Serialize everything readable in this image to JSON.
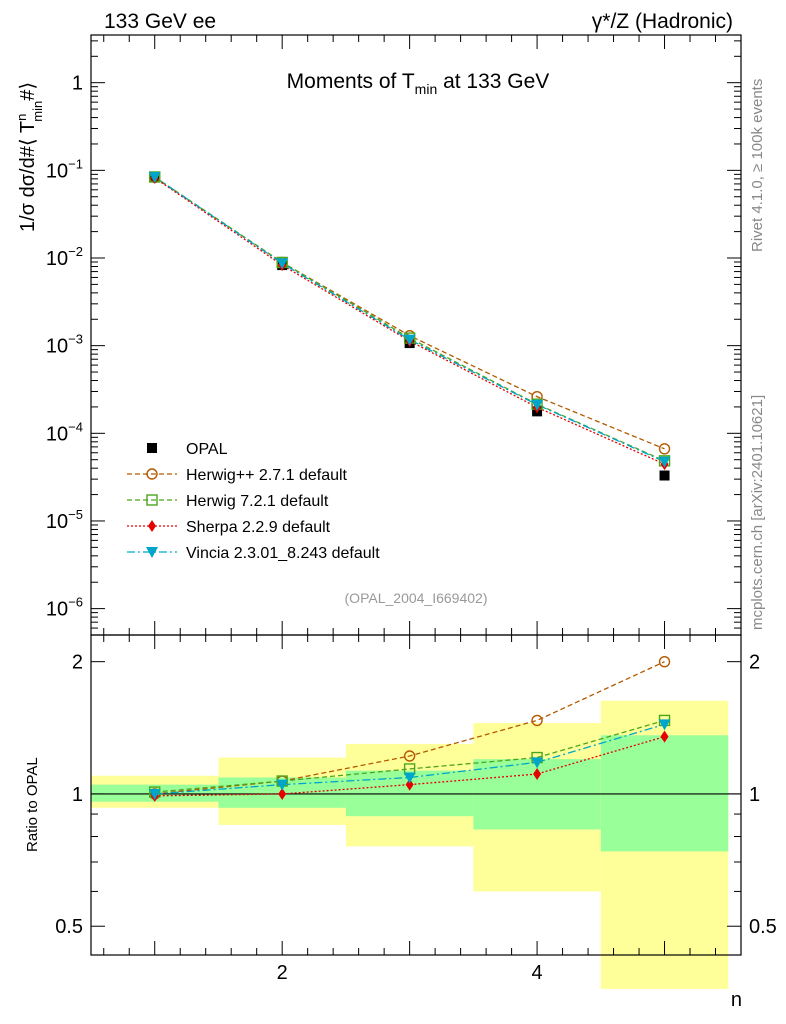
{
  "header": {
    "left": "133 GeV ee",
    "right": "γ*/Z (Hadronic)"
  },
  "side_labels": {
    "rivet": "Rivet 4.1.0, ≥ 100k events",
    "mcplots": "mcplots.cern.ch [arXiv:2401.10621]"
  },
  "chart_data": [
    {
      "type": "line",
      "title_parts": {
        "prefix": "Moments of T",
        "sub": "min",
        "suffix": " at 133 GeV"
      },
      "ylabel": "1/σ  dσ/d#⟨ T",
      "ylabel_sup": "n",
      "ylabel_sub": "min",
      "ylabel_end": "#⟩",
      "yscale": "log",
      "ylim": [
        5e-07,
        3.5
      ],
      "xlim": [
        0.5,
        5.6
      ],
      "yticks": [
        {
          "v": 1,
          "label": "1"
        },
        {
          "v": 0.1,
          "label": "10",
          "exp": "−1"
        },
        {
          "v": 0.01,
          "label": "10",
          "exp": "−2"
        },
        {
          "v": 0.001,
          "label": "10",
          "exp": "−3"
        },
        {
          "v": 0.0001,
          "label": "10",
          "exp": "−4"
        },
        {
          "v": 1e-05,
          "label": "10",
          "exp": "−5"
        },
        {
          "v": 1e-06,
          "label": "10",
          "exp": "−6"
        }
      ],
      "annotation": "(OPAL_2004_I669402)",
      "x": [
        1,
        2,
        3,
        4,
        5
      ],
      "series": [
        {
          "name": "OPAL",
          "kind": "data",
          "color": "#000000",
          "marker": "square",
          "values": [
            0.083,
            0.0083,
            0.00107,
            0.000178,
            3.3e-05
          ]
        },
        {
          "name": "Herwig++ 2.7.1 default",
          "color": "#b35900",
          "dash": "5,3",
          "marker": "open-circle",
          "values": [
            0.083,
            0.0089,
            0.0013,
            0.000262,
            6.65e-05
          ]
        },
        {
          "name": "Herwig 7.2.1 default",
          "color": "#4da61a",
          "dash": "5,3",
          "marker": "open-square",
          "values": [
            0.084,
            0.0089,
            0.00122,
            0.000215,
            4.85e-05
          ]
        },
        {
          "name": "Sherpa 2.2.9 default",
          "color": "#e60000",
          "dash": "2,2",
          "marker": "diamond",
          "values": [
            0.082,
            0.0083,
            0.00113,
            0.000198,
            4.45e-05
          ]
        },
        {
          "name": "Vincia 2.3.01_8.243 default",
          "color": "#00a6c9",
          "dash": "8,3,2,3",
          "marker": "triangle-down",
          "values": [
            0.084,
            0.0087,
            0.00117,
            0.000212,
            4.75e-05
          ]
        }
      ]
    },
    {
      "type": "line",
      "ylabel": "Ratio to OPAL",
      "xlabel": "n",
      "yscale": "log",
      "ylim": [
        0.43,
        2.3
      ],
      "yticks": [
        {
          "v": 2,
          "label": "2"
        },
        {
          "v": 1,
          "label": "1"
        },
        {
          "v": 0.5,
          "label": "0.5"
        }
      ],
      "xticks": [
        {
          "v": 2,
          "label": "2"
        },
        {
          "v": 4,
          "label": "4"
        }
      ],
      "bands": {
        "bins": [
          [
            0.5,
            1.5
          ],
          [
            1.5,
            2.5
          ],
          [
            2.5,
            3.5
          ],
          [
            3.5,
            4.5
          ],
          [
            4.5,
            5.5
          ]
        ],
        "stat": [
          [
            0.96,
            1.05
          ],
          [
            0.93,
            1.09
          ],
          [
            0.89,
            1.13
          ],
          [
            0.83,
            1.2
          ],
          [
            0.74,
            1.36
          ]
        ],
        "total": [
          [
            0.93,
            1.1
          ],
          [
            0.85,
            1.21
          ],
          [
            0.76,
            1.3
          ],
          [
            0.6,
            1.45
          ],
          [
            0.36,
            1.63
          ]
        ],
        "stat_color": "#99ff99",
        "total_color": "#ffff99"
      },
      "x": [
        1,
        2,
        3,
        4,
        5
      ],
      "series": [
        {
          "name": "Herwig++ 2.7.1 default",
          "values": [
            1.0,
            1.07,
            1.22,
            1.47,
            2.0
          ]
        },
        {
          "name": "Herwig 7.2.1 default",
          "values": [
            1.01,
            1.07,
            1.14,
            1.21,
            1.47
          ]
        },
        {
          "name": "Sherpa 2.2.9 default",
          "values": [
            0.99,
            1.0,
            1.05,
            1.11,
            1.35
          ]
        },
        {
          "name": "Vincia 2.3.01_8.243 default",
          "values": [
            1.0,
            1.05,
            1.09,
            1.18,
            1.44
          ]
        }
      ]
    }
  ]
}
